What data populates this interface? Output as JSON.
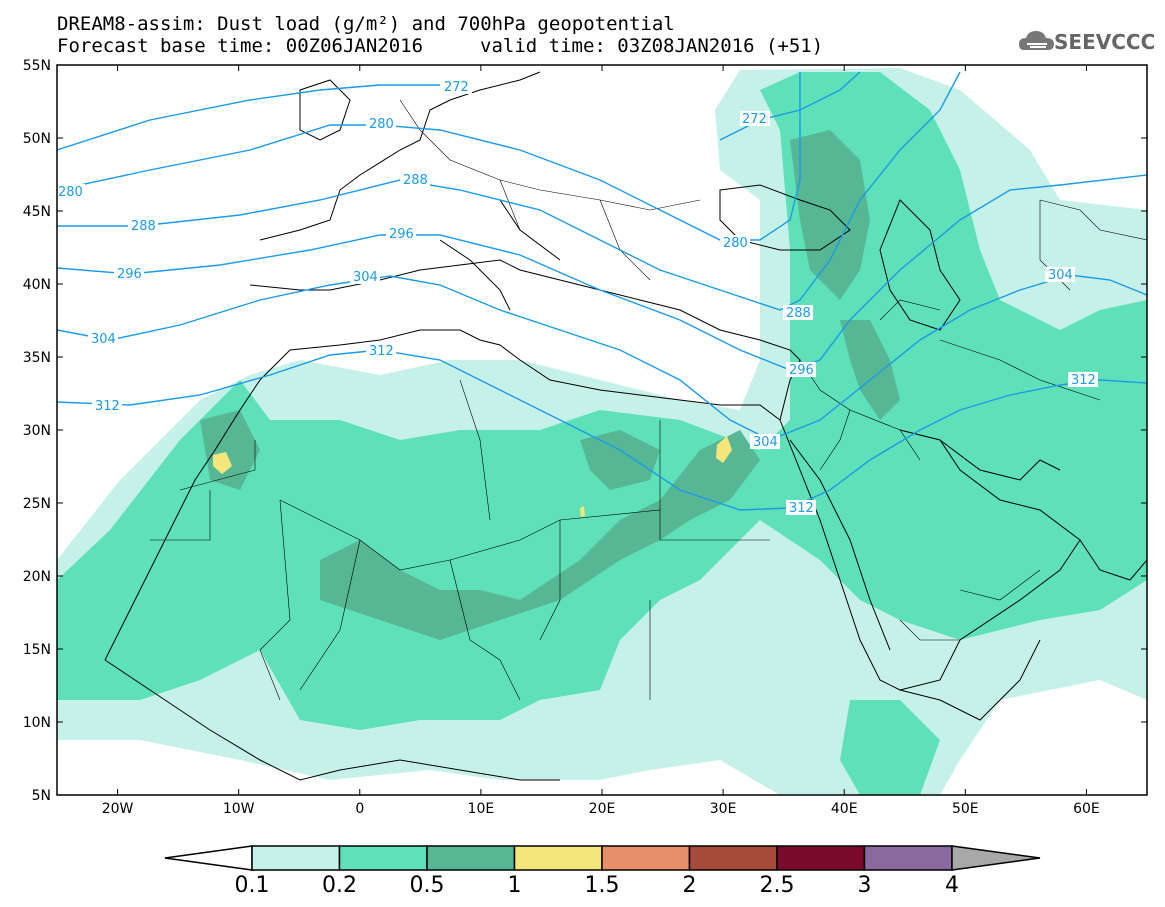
{
  "header": {
    "line1": "DREAM8-assim: Dust load (g/m²) and 700hPa geopotential",
    "line2": "Forecast base time: 00Z06JAN2016",
    "valid": "valid time: 03Z08JAN2016 (+51)"
  },
  "logo": {
    "text": "SEEVCCC",
    "icon": "cloud-icon"
  },
  "map": {
    "lat_range": [
      5,
      55
    ],
    "lon_range": [
      -25,
      65
    ],
    "lat_ticks": [
      "55N",
      "50N",
      "45N",
      "40N",
      "35N",
      "30N",
      "25N",
      "20N",
      "15N",
      "10N",
      "5N"
    ],
    "lon_ticks": [
      "20W",
      "10W",
      "0",
      "10E",
      "20E",
      "30E",
      "40E",
      "50E",
      "60E"
    ],
    "contour_color": "#1a9be8",
    "contour_labels": [
      "272",
      "280",
      "288",
      "296",
      "304",
      "312",
      "272",
      "280",
      "288",
      "296",
      "304",
      "312",
      "280",
      "288",
      "296",
      "304",
      "312",
      "304",
      "312"
    ]
  },
  "colorbar": {
    "labels": [
      "0.1",
      "0.2",
      "0.5",
      "1",
      "1.5",
      "2",
      "2.5",
      "3",
      "4"
    ],
    "colors": [
      "#c6f1e8",
      "#5ee0b8",
      "#57b694",
      "#f5e67c",
      "#e8906a",
      "#a84a3a",
      "#7a0a2c",
      "#8a6a9e",
      "#a8a8a8"
    ]
  }
}
